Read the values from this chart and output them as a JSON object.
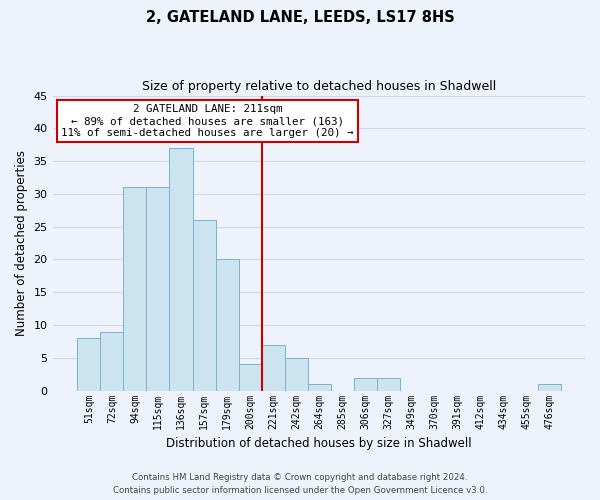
{
  "title": "2, GATELAND LANE, LEEDS, LS17 8HS",
  "subtitle": "Size of property relative to detached houses in Shadwell",
  "xlabel": "Distribution of detached houses by size in Shadwell",
  "ylabel": "Number of detached properties",
  "bar_labels": [
    "51sqm",
    "72sqm",
    "94sqm",
    "115sqm",
    "136sqm",
    "157sqm",
    "179sqm",
    "200sqm",
    "221sqm",
    "242sqm",
    "264sqm",
    "285sqm",
    "306sqm",
    "327sqm",
    "349sqm",
    "370sqm",
    "391sqm",
    "412sqm",
    "434sqm",
    "455sqm",
    "476sqm"
  ],
  "bar_values": [
    8,
    9,
    31,
    31,
    37,
    26,
    20,
    4,
    7,
    5,
    1,
    0,
    2,
    2,
    0,
    0,
    0,
    0,
    0,
    0,
    1
  ],
  "bar_color": "#cce4f0",
  "bar_edge_color": "#7ab3cc",
  "highlight_line_index": 8,
  "highlight_line_color": "#cc0000",
  "ylim": [
    0,
    45
  ],
  "yticks": [
    0,
    5,
    10,
    15,
    20,
    25,
    30,
    35,
    40,
    45
  ],
  "annotation_title": "2 GATELAND LANE: 211sqm",
  "annotation_line1": "← 89% of detached houses are smaller (163)",
  "annotation_line2": "11% of semi-detached houses are larger (20) →",
  "annotation_box_color": "#ffffff",
  "annotation_box_edge_color": "#cc0000",
  "footer_line1": "Contains HM Land Registry data © Crown copyright and database right 2024.",
  "footer_line2": "Contains public sector information licensed under the Open Government Licence v3.0.",
  "background_color": "#eef2fb",
  "grid_color": "#d0d8e8"
}
